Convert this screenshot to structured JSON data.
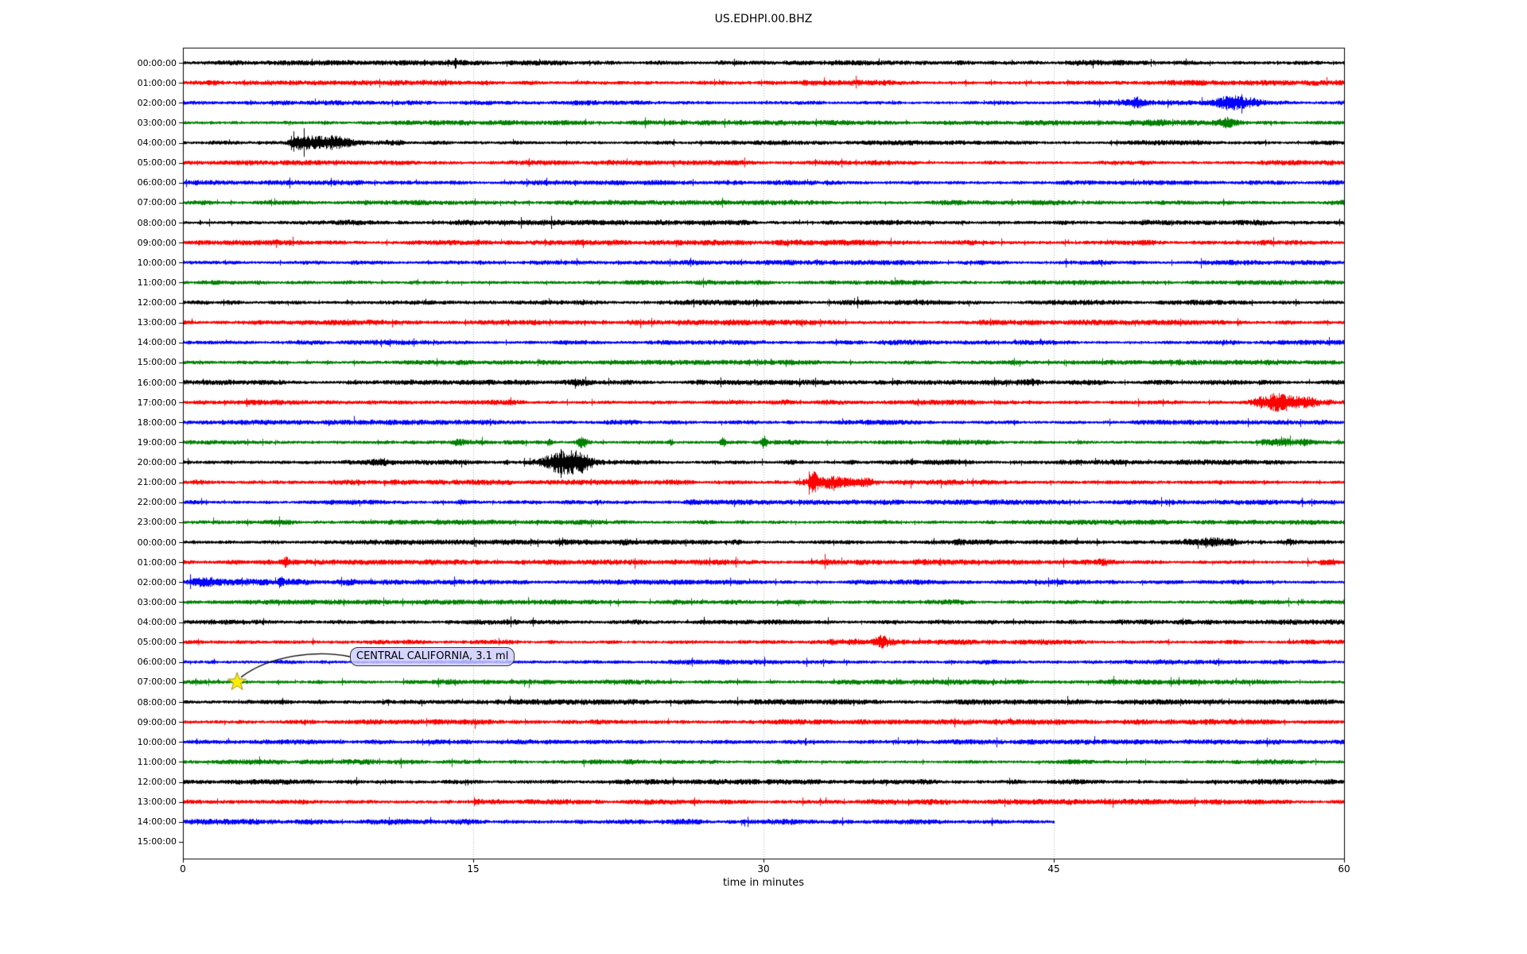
{
  "chart_data": {
    "type": "line",
    "subtype": "helicorder-dayplot",
    "title": "US.EDHPI.00.BHZ",
    "xlabel": "time in minutes",
    "x_range": [
      0,
      60
    ],
    "x_tick_labels": [
      "0",
      "15",
      "30",
      "45",
      "60"
    ],
    "x_tick_minutes": [
      0,
      15,
      30,
      45,
      60
    ],
    "grid_minutes": [
      15,
      30,
      45
    ],
    "grid_style": "dotted",
    "grid_color": "#b0b0b0",
    "color_cycle": [
      "#000000",
      "#ff0000",
      "#0000ff",
      "#008000"
    ],
    "minutes_per_row": 60,
    "annotation": {
      "text": "CENTRAL CALIFORNIA, 3.1 ml",
      "row_index": 31,
      "row_label": "07:00:00",
      "minute": 2.8,
      "star_color": "#ffee00",
      "box_color": "#ccccff"
    },
    "rows": [
      {
        "label": "00:00:00",
        "color": "#000000",
        "end_minute": 60,
        "amp": 2.4,
        "events": []
      },
      {
        "label": "01:00:00",
        "color": "#ff0000",
        "end_minute": 60,
        "amp": 2.4,
        "events": []
      },
      {
        "label": "02:00:00",
        "color": "#0000ff",
        "end_minute": 60,
        "amp": 2.2,
        "events": [
          {
            "minute": 49.2,
            "amplitude": 2.4,
            "width": 0.3
          },
          {
            "minute": 54.1,
            "amplitude": 3.2,
            "width": 0.5
          },
          {
            "minute": 55.2,
            "amplitude": 2.0,
            "width": 0.3
          }
        ]
      },
      {
        "label": "03:00:00",
        "color": "#008000",
        "end_minute": 60,
        "amp": 2.2,
        "events": [
          {
            "minute": 49.9,
            "amplitude": 2.0,
            "width": 0.7
          },
          {
            "minute": 53.9,
            "amplitude": 2.6,
            "width": 0.3
          }
        ]
      },
      {
        "label": "04:00:00",
        "color": "#000000",
        "end_minute": 60,
        "amp": 2.2,
        "events": [
          {
            "minute": 6.2,
            "amplitude": 2.4,
            "width": 0.5
          },
          {
            "minute": 7.0,
            "amplitude": 3.6,
            "width": 0.8
          },
          {
            "minute": 8.0,
            "amplitude": 2.0,
            "width": 0.4
          },
          {
            "minute": 11.0,
            "amplitude": 1.9,
            "width": 0.3
          }
        ]
      },
      {
        "label": "05:00:00",
        "color": "#ff0000",
        "end_minute": 60,
        "amp": 2.2,
        "events": []
      },
      {
        "label": "06:00:00",
        "color": "#0000ff",
        "end_minute": 60,
        "amp": 2.2,
        "events": []
      },
      {
        "label": "07:00:00",
        "color": "#008000",
        "end_minute": 60,
        "amp": 2.2,
        "events": []
      },
      {
        "label": "08:00:00",
        "color": "#000000",
        "end_minute": 60,
        "amp": 2.4,
        "events": []
      },
      {
        "label": "09:00:00",
        "color": "#ff0000",
        "end_minute": 60,
        "amp": 2.4,
        "events": []
      },
      {
        "label": "10:00:00",
        "color": "#0000ff",
        "end_minute": 60,
        "amp": 2.2,
        "events": []
      },
      {
        "label": "11:00:00",
        "color": "#008000",
        "end_minute": 60,
        "amp": 2.2,
        "events": []
      },
      {
        "label": "12:00:00",
        "color": "#000000",
        "end_minute": 60,
        "amp": 2.3,
        "events": []
      },
      {
        "label": "13:00:00",
        "color": "#ff0000",
        "end_minute": 60,
        "amp": 2.4,
        "events": []
      },
      {
        "label": "14:00:00",
        "color": "#0000ff",
        "end_minute": 60,
        "amp": 2.2,
        "events": []
      },
      {
        "label": "15:00:00",
        "color": "#008000",
        "end_minute": 60,
        "amp": 2.2,
        "events": []
      },
      {
        "label": "16:00:00",
        "color": "#000000",
        "end_minute": 60,
        "amp": 2.3,
        "events": [
          {
            "minute": 20.7,
            "amplitude": 1.5,
            "width": 0.4
          },
          {
            "minute": 44.1,
            "amplitude": 1.5,
            "width": 0.4
          }
        ]
      },
      {
        "label": "17:00:00",
        "color": "#ff0000",
        "end_minute": 60,
        "amp": 2.3,
        "events": [
          {
            "minute": 55.6,
            "amplitude": 3.0,
            "width": 0.35
          },
          {
            "minute": 56.4,
            "amplitude": 3.6,
            "width": 0.5
          },
          {
            "minute": 57.8,
            "amplitude": 2.2,
            "width": 1.0
          }
        ]
      },
      {
        "label": "18:00:00",
        "color": "#0000ff",
        "end_minute": 60,
        "amp": 2.2,
        "events": []
      },
      {
        "label": "19:00:00",
        "color": "#008000",
        "end_minute": 60,
        "amp": 2.2,
        "events": [
          {
            "minute": 14.2,
            "amplitude": 2.2,
            "width": 0.25
          },
          {
            "minute": 18.9,
            "amplitude": 2.6,
            "width": 0.12
          },
          {
            "minute": 20.6,
            "amplitude": 3.2,
            "width": 0.15
          },
          {
            "minute": 25.2,
            "amplitude": 2.2,
            "width": 0.12
          },
          {
            "minute": 27.9,
            "amplitude": 3.4,
            "width": 0.12
          },
          {
            "minute": 30.0,
            "amplitude": 3.8,
            "width": 0.1
          },
          {
            "minute": 56.5,
            "amplitude": 2.6,
            "width": 0.6
          },
          {
            "minute": 58.2,
            "amplitude": 2.2,
            "width": 0.4
          }
        ]
      },
      {
        "label": "20:00:00",
        "color": "#000000",
        "end_minute": 60,
        "amp": 2.3,
        "events": [
          {
            "minute": 10.2,
            "amplitude": 1.8,
            "width": 0.4
          },
          {
            "minute": 16.7,
            "amplitude": 2.6,
            "width": 0.08
          },
          {
            "minute": 19.1,
            "amplitude": 2.2,
            "width": 0.5
          },
          {
            "minute": 19.9,
            "amplitude": 4.2,
            "width": 0.55
          },
          {
            "minute": 20.7,
            "amplitude": 2.6,
            "width": 0.35
          },
          {
            "minute": 31.4,
            "amplitude": 1.5,
            "width": 0.3
          },
          {
            "minute": 44.0,
            "amplitude": 1.4,
            "width": 0.3
          }
        ]
      },
      {
        "label": "21:00:00",
        "color": "#ff0000",
        "end_minute": 60,
        "amp": 2.3,
        "events": [
          {
            "minute": 32.55,
            "amplitude": 4.0,
            "width": 0.18
          },
          {
            "minute": 33.6,
            "amplitude": 2.4,
            "width": 0.9
          },
          {
            "minute": 35.4,
            "amplitude": 1.9,
            "width": 0.25
          }
        ]
      },
      {
        "label": "22:00:00",
        "color": "#0000ff",
        "end_minute": 60,
        "amp": 2.2,
        "events": [
          {
            "minute": 14.3,
            "amplitude": 1.7,
            "width": 0.15
          },
          {
            "minute": 19.8,
            "amplitude": 1.6,
            "width": 0.2
          },
          {
            "minute": 26.3,
            "amplitude": 1.5,
            "width": 0.2
          }
        ]
      },
      {
        "label": "23:00:00",
        "color": "#008000",
        "end_minute": 60,
        "amp": 2.2,
        "events": [
          {
            "minute": 29.0,
            "amplitude": 1.5,
            "width": 0.25
          },
          {
            "minute": 36.2,
            "amplitude": 1.6,
            "width": 0.3
          }
        ]
      },
      {
        "label": "00:00:00",
        "color": "#000000",
        "end_minute": 60,
        "amp": 2.4,
        "events": [
          {
            "minute": 22.8,
            "amplitude": 1.5,
            "width": 0.2
          },
          {
            "minute": 28.5,
            "amplitude": 1.5,
            "width": 0.25
          },
          {
            "minute": 40.0,
            "amplitude": 1.4,
            "width": 0.2
          },
          {
            "minute": 52.4,
            "amplitude": 2.0,
            "width": 1.1
          },
          {
            "minute": 57.1,
            "amplitude": 2.0,
            "width": 0.25
          }
        ]
      },
      {
        "label": "01:00:00",
        "color": "#ff0000",
        "end_minute": 60,
        "amp": 2.3,
        "events": [
          {
            "minute": 2.5,
            "amplitude": 1.6,
            "width": 0.5
          },
          {
            "minute": 5.3,
            "amplitude": 2.6,
            "width": 0.1
          },
          {
            "minute": 33.2,
            "amplitude": 1.6,
            "width": 0.3
          },
          {
            "minute": 38.2,
            "amplitude": 1.5,
            "width": 0.3
          },
          {
            "minute": 47.5,
            "amplitude": 1.5,
            "width": 0.3
          },
          {
            "minute": 59.1,
            "amplitude": 2.4,
            "width": 0.3
          }
        ]
      },
      {
        "label": "02:00:00",
        "color": "#0000ff",
        "end_minute": 60,
        "amp": 2.2,
        "events": [
          {
            "minute": 1.0,
            "amplitude": 2.0,
            "width": 0.7
          },
          {
            "minute": 4.2,
            "amplitude": 1.5,
            "width": 2.0
          },
          {
            "minute": 5.05,
            "amplitude": 3.4,
            "width": 0.1
          },
          {
            "minute": 5.6,
            "amplitude": 2.0,
            "width": 0.5
          },
          {
            "minute": 8.6,
            "amplitude": 1.6,
            "width": 0.3
          }
        ]
      },
      {
        "label": "03:00:00",
        "color": "#008000",
        "end_minute": 60,
        "amp": 2.2,
        "events": []
      },
      {
        "label": "04:00:00",
        "color": "#000000",
        "end_minute": 60,
        "amp": 2.3,
        "events": []
      },
      {
        "label": "05:00:00",
        "color": "#ff0000",
        "end_minute": 60,
        "amp": 2.3,
        "events": [
          {
            "minute": 34.3,
            "amplitude": 1.9,
            "width": 0.8
          },
          {
            "minute": 36.1,
            "amplitude": 4.4,
            "width": 0.3
          },
          {
            "minute": 36.9,
            "amplitude": 1.8,
            "width": 0.4
          }
        ]
      },
      {
        "label": "06:00:00",
        "color": "#0000ff",
        "end_minute": 60,
        "amp": 2.2,
        "events": []
      },
      {
        "label": "07:00:00",
        "color": "#008000",
        "end_minute": 60,
        "amp": 2.2,
        "events": []
      },
      {
        "label": "08:00:00",
        "color": "#000000",
        "end_minute": 60,
        "amp": 2.4,
        "events": []
      },
      {
        "label": "09:00:00",
        "color": "#ff0000",
        "end_minute": 60,
        "amp": 2.4,
        "events": []
      },
      {
        "label": "10:00:00",
        "color": "#0000ff",
        "end_minute": 60,
        "amp": 2.2,
        "events": []
      },
      {
        "label": "11:00:00",
        "color": "#008000",
        "end_minute": 60,
        "amp": 2.2,
        "events": []
      },
      {
        "label": "12:00:00",
        "color": "#000000",
        "end_minute": 60,
        "amp": 2.4,
        "events": []
      },
      {
        "label": "13:00:00",
        "color": "#ff0000",
        "end_minute": 60,
        "amp": 2.4,
        "events": []
      },
      {
        "label": "14:00:00",
        "color": "#0000ff",
        "end_minute": 45,
        "amp": 2.5,
        "events": []
      },
      {
        "label": "15:00:00",
        "color": "#008000",
        "end_minute": 0,
        "amp": 2.2,
        "events": []
      }
    ]
  }
}
